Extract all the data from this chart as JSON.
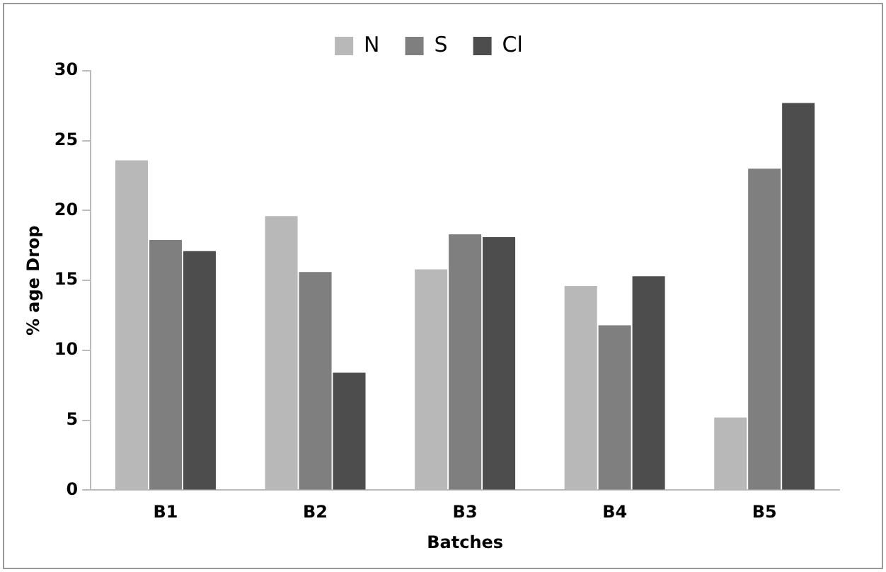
{
  "chart_data": {
    "type": "bar",
    "xlabel": "Batches",
    "ylabel": "% age Drop",
    "categories": [
      "B1",
      "B2",
      "B3",
      "B4",
      "B5"
    ],
    "series": [
      {
        "name": "N",
        "color": "#b8b8b8",
        "values": [
          23.6,
          19.6,
          15.8,
          14.6,
          5.2
        ]
      },
      {
        "name": "S",
        "color": "#7f7f7f",
        "values": [
          17.9,
          15.6,
          18.3,
          11.8,
          23.0
        ]
      },
      {
        "name": "Cl",
        "color": "#4d4d4d",
        "values": [
          17.1,
          8.4,
          18.1,
          15.3,
          27.7
        ]
      }
    ],
    "ylim": [
      0,
      30
    ],
    "yticks": [
      0,
      5,
      10,
      15,
      20,
      25,
      30
    ],
    "grid": false,
    "legend": "top"
  }
}
